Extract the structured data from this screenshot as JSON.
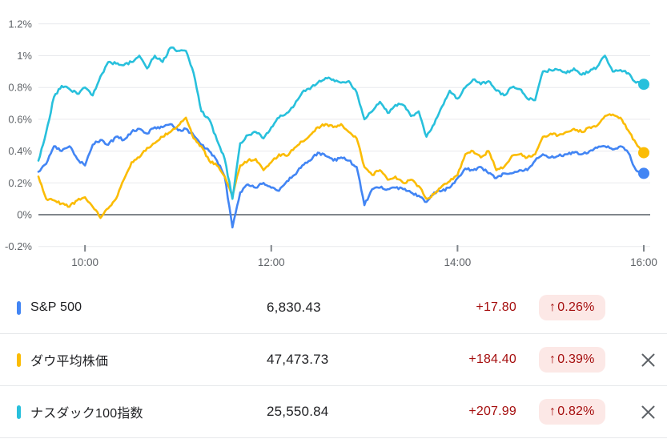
{
  "colors": {
    "background": "#ffffff",
    "grid": "#e9eaed",
    "zero_line": "#80868b",
    "tick_mark": "#80868b",
    "axis_text": "#5f6368",
    "text_primary": "#202124",
    "change_red": "#a50e0e",
    "badge_bg": "#fce8e6",
    "close_icon": "#5f6368",
    "divider": "#e6e8ea"
  },
  "chart_data": {
    "type": "line",
    "title": "",
    "unit": "%",
    "grid": true,
    "legend_position": "bottom-table",
    "x_start_hour": 9.5,
    "x_end_hour": 16.0,
    "sample_interval_min": 5,
    "y_axis": {
      "range": [
        -0.32,
        1.34
      ],
      "ticks": [
        {
          "label": "1.2%",
          "value": 1.2
        },
        {
          "label": "1%",
          "value": 1.0
        },
        {
          "label": "0.8%",
          "value": 0.8
        },
        {
          "label": "0.6%",
          "value": 0.6
        },
        {
          "label": "0.4%",
          "value": 0.4
        },
        {
          "label": "0.2%",
          "value": 0.2
        },
        {
          "label": "0%",
          "value": 0.0
        },
        {
          "label": "-0.2%",
          "value": -0.2
        }
      ]
    },
    "x_axis": {
      "ticks": [
        {
          "label": "10:00",
          "hour": 10.0
        },
        {
          "label": "12:00",
          "hour": 12.0
        },
        {
          "label": "14:00",
          "hour": 14.0
        },
        {
          "label": "16:00",
          "hour": 16.0
        }
      ]
    },
    "x_times": [
      "9:30",
      "9:35",
      "9:40",
      "9:45",
      "9:50",
      "9:55",
      "10:00",
      "10:05",
      "10:10",
      "10:15",
      "10:20",
      "10:25",
      "10:30",
      "10:35",
      "10:40",
      "10:45",
      "10:50",
      "10:55",
      "11:00",
      "11:05",
      "11:10",
      "11:15",
      "11:20",
      "11:25",
      "11:30",
      "11:35",
      "11:40",
      "11:45",
      "11:50",
      "11:55",
      "12:00",
      "12:05",
      "12:10",
      "12:15",
      "12:20",
      "12:25",
      "12:30",
      "12:35",
      "12:40",
      "12:45",
      "12:50",
      "12:55",
      "13:00",
      "13:05",
      "13:10",
      "13:15",
      "13:20",
      "13:25",
      "13:30",
      "13:35",
      "13:40",
      "13:45",
      "13:50",
      "13:55",
      "14:00",
      "14:05",
      "14:10",
      "14:15",
      "14:20",
      "14:25",
      "14:30",
      "14:35",
      "14:40",
      "14:45",
      "14:50",
      "14:55",
      "15:00",
      "15:05",
      "15:10",
      "15:15",
      "15:20",
      "15:25",
      "15:30",
      "15:35",
      "15:40",
      "15:45",
      "15:50",
      "15:55",
      "16:00"
    ],
    "series": [
      {
        "id": "sp500",
        "name": "S&P 500",
        "color": "#4285f4",
        "end_value_pct": 0.26,
        "values": [
          0.27,
          0.32,
          0.43,
          0.4,
          0.43,
          0.35,
          0.31,
          0.44,
          0.47,
          0.44,
          0.49,
          0.47,
          0.52,
          0.54,
          0.51,
          0.55,
          0.55,
          0.57,
          0.53,
          0.54,
          0.5,
          0.44,
          0.4,
          0.34,
          0.24,
          -0.08,
          0.14,
          0.19,
          0.17,
          0.2,
          0.17,
          0.15,
          0.21,
          0.25,
          0.31,
          0.34,
          0.39,
          0.37,
          0.34,
          0.36,
          0.34,
          0.3,
          0.06,
          0.16,
          0.17,
          0.16,
          0.17,
          0.16,
          0.14,
          0.12,
          0.08,
          0.14,
          0.15,
          0.17,
          0.23,
          0.29,
          0.28,
          0.3,
          0.26,
          0.23,
          0.26,
          0.26,
          0.28,
          0.28,
          0.34,
          0.38,
          0.36,
          0.37,
          0.38,
          0.39,
          0.38,
          0.4,
          0.42,
          0.43,
          0.41,
          0.43,
          0.39,
          0.28,
          0.26
        ]
      },
      {
        "id": "dow",
        "name": "ダウ平均株価",
        "color": "#fbbc04",
        "end_value_pct": 0.39,
        "values": [
          0.24,
          0.1,
          0.09,
          0.07,
          0.05,
          0.09,
          0.11,
          0.05,
          -0.02,
          0.04,
          0.1,
          0.22,
          0.33,
          0.36,
          0.42,
          0.45,
          0.49,
          0.52,
          0.56,
          0.61,
          0.48,
          0.43,
          0.34,
          0.31,
          0.24,
          0.12,
          0.31,
          0.34,
          0.35,
          0.28,
          0.33,
          0.38,
          0.37,
          0.42,
          0.46,
          0.5,
          0.55,
          0.57,
          0.55,
          0.57,
          0.52,
          0.48,
          0.3,
          0.25,
          0.28,
          0.22,
          0.24,
          0.2,
          0.22,
          0.18,
          0.1,
          0.13,
          0.18,
          0.21,
          0.25,
          0.38,
          0.4,
          0.36,
          0.4,
          0.28,
          0.3,
          0.37,
          0.38,
          0.36,
          0.38,
          0.49,
          0.51,
          0.5,
          0.52,
          0.54,
          0.52,
          0.55,
          0.56,
          0.62,
          0.63,
          0.61,
          0.53,
          0.45,
          0.39
        ]
      },
      {
        "id": "nasdaq100",
        "name": "ナスダック100指数",
        "color": "#28c0dc",
        "end_value_pct": 0.82,
        "values": [
          0.34,
          0.52,
          0.74,
          0.81,
          0.79,
          0.76,
          0.8,
          0.75,
          0.87,
          0.96,
          0.95,
          0.94,
          0.96,
          1.0,
          0.92,
          1.0,
          0.96,
          1.05,
          1.03,
          1.03,
          0.89,
          0.65,
          0.6,
          0.47,
          0.35,
          0.1,
          0.45,
          0.5,
          0.52,
          0.48,
          0.55,
          0.61,
          0.64,
          0.69,
          0.77,
          0.79,
          0.83,
          0.86,
          0.85,
          0.83,
          0.84,
          0.77,
          0.6,
          0.65,
          0.71,
          0.64,
          0.69,
          0.69,
          0.62,
          0.65,
          0.49,
          0.57,
          0.68,
          0.78,
          0.73,
          0.8,
          0.85,
          0.82,
          0.84,
          0.78,
          0.75,
          0.8,
          0.79,
          0.73,
          0.72,
          0.9,
          0.91,
          0.91,
          0.89,
          0.92,
          0.88,
          0.9,
          0.93,
          1.0,
          0.9,
          0.91,
          0.89,
          0.83,
          0.82
        ]
      }
    ]
  },
  "legend": {
    "rows": [
      {
        "id": "sp500",
        "name": "S&P 500",
        "color": "#4285f4",
        "value": "6,830.43",
        "change": "+17.80",
        "arrow": "↑",
        "pct": "0.26%",
        "closable": false
      },
      {
        "id": "dow",
        "name": "ダウ平均株価",
        "color": "#fbbc04",
        "value": "47,473.73",
        "change": "+184.40",
        "arrow": "↑",
        "pct": "0.39%",
        "closable": true
      },
      {
        "id": "nasdaq100",
        "name": "ナスダック100指数",
        "color": "#28c0dc",
        "value": "25,550.84",
        "change": "+207.99",
        "arrow": "↑",
        "pct": "0.82%",
        "closable": true
      }
    ]
  }
}
